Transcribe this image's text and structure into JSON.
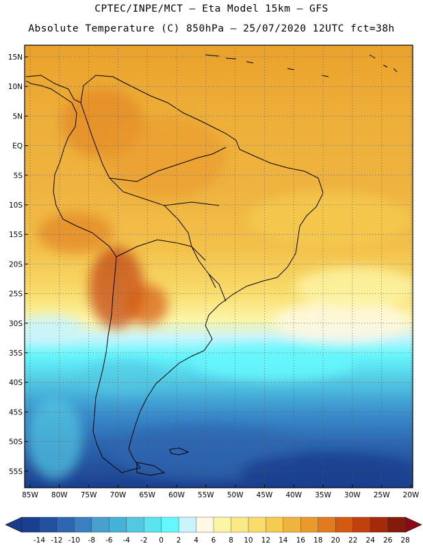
{
  "header": {
    "line1": "CPTEC/INPE/MCT –   Eta Model 15km – GFS",
    "line2": "Absolute Temperature (C) 850hPa – 25/07/2020 12UTC fct=38h"
  },
  "map": {
    "lat_labels": [
      "15N",
      "10N",
      "5N",
      "EQ",
      "5S",
      "10S",
      "15S",
      "20S",
      "25S",
      "30S",
      "35S",
      "40S",
      "45S",
      "50S",
      "55S"
    ],
    "lon_labels": [
      "85W",
      "80W",
      "75W",
      "70W",
      "65W",
      "60W",
      "55W",
      "50W",
      "45W",
      "40W",
      "35W",
      "30W",
      "25W",
      "20W"
    ]
  },
  "colorbar": {
    "labels": [
      "-14",
      "-12",
      "-10",
      "-8",
      "-6",
      "-4",
      "-2",
      "0",
      "2",
      "4",
      "6",
      "8",
      "10",
      "12",
      "14",
      "16",
      "18",
      "20",
      "22",
      "24",
      "26",
      "28"
    ],
    "colors": [
      "#1b3f8f",
      "#22519f",
      "#2d67b1",
      "#3a7fc0",
      "#4aa0cc",
      "#45b3d8",
      "#52c8e3",
      "#5be3f0",
      "#66f7fd",
      "#c9f4fb",
      "#fff8e5",
      "#fdf5a6",
      "#fbe986",
      "#f9dc6c",
      "#f5cc50",
      "#efb33f",
      "#e99a2b",
      "#e07c1f",
      "#d45a12",
      "#c1400c",
      "#a52a0a",
      "#831a0a"
    ],
    "low_color": "#1a3a8c",
    "high_color": "#8a0818"
  }
}
